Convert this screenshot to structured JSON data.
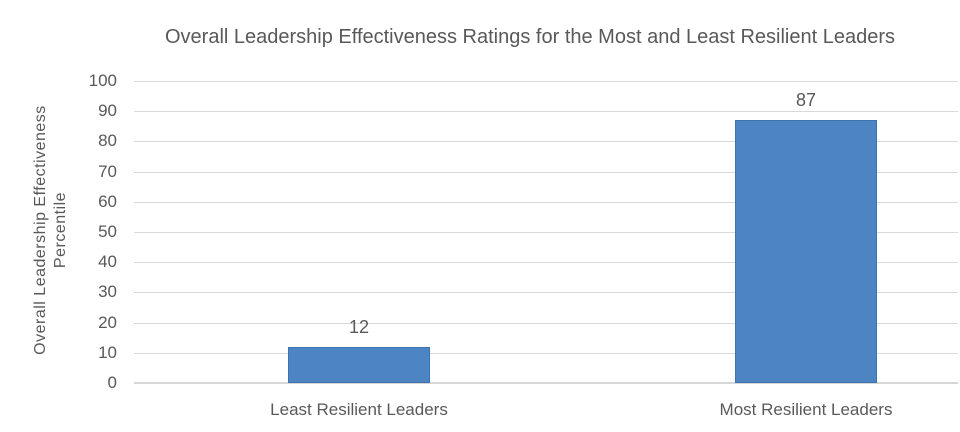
{
  "chart_data": {
    "type": "bar",
    "title": "Overall Leadership Effectiveness Ratings for the Most and Least Resilient Leaders",
    "ylabel_line1": "Overall Leadership Effectiveness",
    "ylabel_line2": "Percentile",
    "xlabel": "",
    "categories": [
      "Least Resilient Leaders",
      "Most Resilient Leaders"
    ],
    "values": [
      12,
      87
    ],
    "ylim": [
      0,
      100
    ],
    "yticks": [
      0,
      10,
      20,
      30,
      40,
      50,
      60,
      70,
      80,
      90,
      100
    ],
    "grid": true,
    "legend": "none",
    "colors": {
      "bar_fill": "#4D84C4",
      "bar_border": "#3E73AE",
      "gridline": "#D9D9D9",
      "axis_line": "#D6D6D6",
      "text": "#595959"
    }
  }
}
